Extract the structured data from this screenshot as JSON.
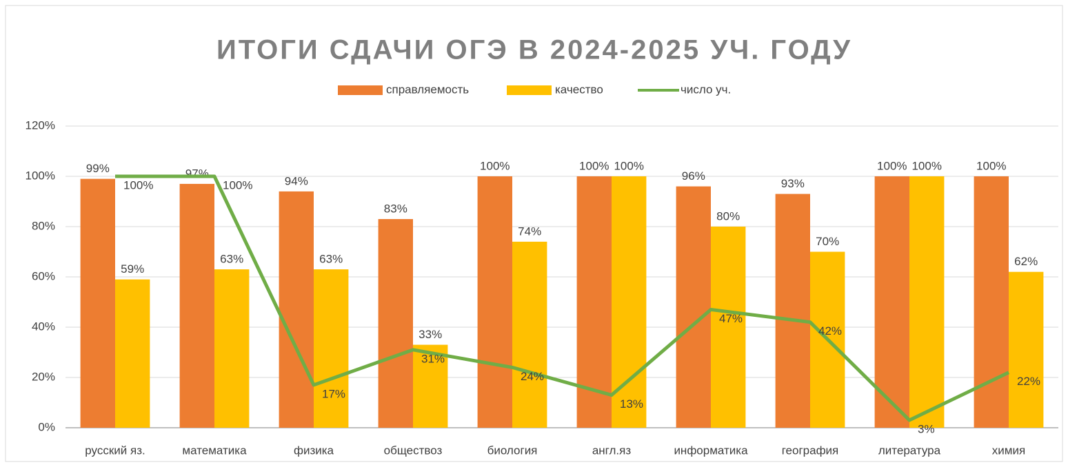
{
  "chart_data": {
    "type": "bar",
    "title": "ИТОГИ СДАЧИ ОГЭ В 2024-2025 УЧ. ГОДУ",
    "categories": [
      "русский яз.",
      "математика",
      "физика",
      "обществоз",
      "биология",
      "англ.яз",
      "информатика",
      "география",
      "литература",
      "химия"
    ],
    "series": [
      {
        "name": "справляемость",
        "color": "#ed7d31",
        "type": "bar",
        "values": [
          99,
          97,
          94,
          83,
          100,
          100,
          96,
          93,
          100,
          100
        ],
        "value_labels": [
          "99%",
          "97%",
          "94%",
          "83%",
          "100%",
          "100%",
          "96%",
          "93%",
          "100%",
          "100%"
        ]
      },
      {
        "name": "качество",
        "color": "#ffc000",
        "type": "bar",
        "values": [
          59,
          63,
          63,
          33,
          74,
          100,
          80,
          70,
          100,
          62
        ],
        "value_labels": [
          "59%",
          "63%",
          "63%",
          "33%",
          "74%",
          "100%",
          "80%",
          "70%",
          "100%",
          "62%"
        ]
      },
      {
        "name": "число уч.",
        "color": "#70ad47",
        "type": "line",
        "values": [
          100,
          100,
          17,
          31,
          24,
          13,
          47,
          42,
          3,
          22
        ],
        "value_labels": [
          "100%",
          "100%",
          "17%",
          "31%",
          "24%",
          "13%",
          "47%",
          "42%",
          "3%",
          "22%"
        ]
      }
    ],
    "ylim": [
      0,
      120
    ],
    "yticks": [
      {
        "value": 0,
        "label": "0%"
      },
      {
        "value": 20,
        "label": "20%"
      },
      {
        "value": 40,
        "label": "40%"
      },
      {
        "value": 60,
        "label": "60%"
      },
      {
        "value": 80,
        "label": "80%"
      },
      {
        "value": 100,
        "label": "100%"
      },
      {
        "value": 120,
        "label": "120%"
      }
    ],
    "grid": true,
    "legend": "top"
  }
}
